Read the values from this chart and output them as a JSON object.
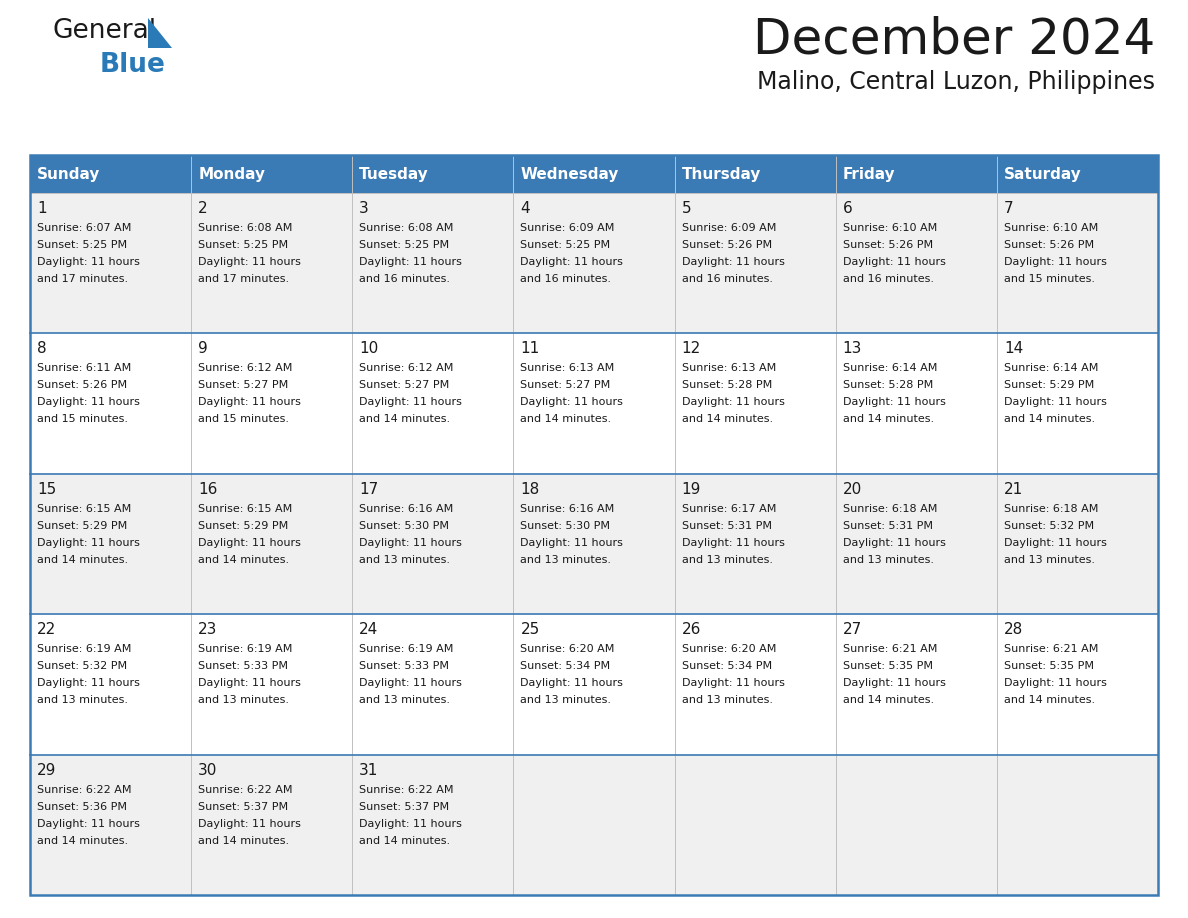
{
  "title": "December 2024",
  "subtitle": "Malino, Central Luzon, Philippines",
  "header_color": "#3a7ab5",
  "header_text_color": "#ffffff",
  "row_bg_odd": "#f0f0f0",
  "row_bg_even": "#ffffff",
  "border_color": "#3a7ab5",
  "sep_color": "#3a7ab5",
  "day_headers": [
    "Sunday",
    "Monday",
    "Tuesday",
    "Wednesday",
    "Thursday",
    "Friday",
    "Saturday"
  ],
  "weeks": [
    [
      {
        "day": 1,
        "sunrise": "6:07 AM",
        "sunset": "5:25 PM",
        "daylight": "11 hours and 17 minutes."
      },
      {
        "day": 2,
        "sunrise": "6:08 AM",
        "sunset": "5:25 PM",
        "daylight": "11 hours and 17 minutes."
      },
      {
        "day": 3,
        "sunrise": "6:08 AM",
        "sunset": "5:25 PM",
        "daylight": "11 hours and 16 minutes."
      },
      {
        "day": 4,
        "sunrise": "6:09 AM",
        "sunset": "5:25 PM",
        "daylight": "11 hours and 16 minutes."
      },
      {
        "day": 5,
        "sunrise": "6:09 AM",
        "sunset": "5:26 PM",
        "daylight": "11 hours and 16 minutes."
      },
      {
        "day": 6,
        "sunrise": "6:10 AM",
        "sunset": "5:26 PM",
        "daylight": "11 hours and 16 minutes."
      },
      {
        "day": 7,
        "sunrise": "6:10 AM",
        "sunset": "5:26 PM",
        "daylight": "11 hours and 15 minutes."
      }
    ],
    [
      {
        "day": 8,
        "sunrise": "6:11 AM",
        "sunset": "5:26 PM",
        "daylight": "11 hours and 15 minutes."
      },
      {
        "day": 9,
        "sunrise": "6:12 AM",
        "sunset": "5:27 PM",
        "daylight": "11 hours and 15 minutes."
      },
      {
        "day": 10,
        "sunrise": "6:12 AM",
        "sunset": "5:27 PM",
        "daylight": "11 hours and 14 minutes."
      },
      {
        "day": 11,
        "sunrise": "6:13 AM",
        "sunset": "5:27 PM",
        "daylight": "11 hours and 14 minutes."
      },
      {
        "day": 12,
        "sunrise": "6:13 AM",
        "sunset": "5:28 PM",
        "daylight": "11 hours and 14 minutes."
      },
      {
        "day": 13,
        "sunrise": "6:14 AM",
        "sunset": "5:28 PM",
        "daylight": "11 hours and 14 minutes."
      },
      {
        "day": 14,
        "sunrise": "6:14 AM",
        "sunset": "5:29 PM",
        "daylight": "11 hours and 14 minutes."
      }
    ],
    [
      {
        "day": 15,
        "sunrise": "6:15 AM",
        "sunset": "5:29 PM",
        "daylight": "11 hours and 14 minutes."
      },
      {
        "day": 16,
        "sunrise": "6:15 AM",
        "sunset": "5:29 PM",
        "daylight": "11 hours and 14 minutes."
      },
      {
        "day": 17,
        "sunrise": "6:16 AM",
        "sunset": "5:30 PM",
        "daylight": "11 hours and 13 minutes."
      },
      {
        "day": 18,
        "sunrise": "6:16 AM",
        "sunset": "5:30 PM",
        "daylight": "11 hours and 13 minutes."
      },
      {
        "day": 19,
        "sunrise": "6:17 AM",
        "sunset": "5:31 PM",
        "daylight": "11 hours and 13 minutes."
      },
      {
        "day": 20,
        "sunrise": "6:18 AM",
        "sunset": "5:31 PM",
        "daylight": "11 hours and 13 minutes."
      },
      {
        "day": 21,
        "sunrise": "6:18 AM",
        "sunset": "5:32 PM",
        "daylight": "11 hours and 13 minutes."
      }
    ],
    [
      {
        "day": 22,
        "sunrise": "6:19 AM",
        "sunset": "5:32 PM",
        "daylight": "11 hours and 13 minutes."
      },
      {
        "day": 23,
        "sunrise": "6:19 AM",
        "sunset": "5:33 PM",
        "daylight": "11 hours and 13 minutes."
      },
      {
        "day": 24,
        "sunrise": "6:19 AM",
        "sunset": "5:33 PM",
        "daylight": "11 hours and 13 minutes."
      },
      {
        "day": 25,
        "sunrise": "6:20 AM",
        "sunset": "5:34 PM",
        "daylight": "11 hours and 13 minutes."
      },
      {
        "day": 26,
        "sunrise": "6:20 AM",
        "sunset": "5:34 PM",
        "daylight": "11 hours and 13 minutes."
      },
      {
        "day": 27,
        "sunrise": "6:21 AM",
        "sunset": "5:35 PM",
        "daylight": "11 hours and 14 minutes."
      },
      {
        "day": 28,
        "sunrise": "6:21 AM",
        "sunset": "5:35 PM",
        "daylight": "11 hours and 14 minutes."
      }
    ],
    [
      {
        "day": 29,
        "sunrise": "6:22 AM",
        "sunset": "5:36 PM",
        "daylight": "11 hours and 14 minutes."
      },
      {
        "day": 30,
        "sunrise": "6:22 AM",
        "sunset": "5:37 PM",
        "daylight": "11 hours and 14 minutes."
      },
      {
        "day": 31,
        "sunrise": "6:22 AM",
        "sunset": "5:37 PM",
        "daylight": "11 hours and 14 minutes."
      },
      null,
      null,
      null,
      null
    ]
  ],
  "logo_text1": "General",
  "logo_text2": "Blue",
  "logo_color1": "#1a1a1a",
  "logo_color2": "#2a7ab8",
  "title_fontsize": 36,
  "subtitle_fontsize": 17,
  "day_num_fontsize": 11,
  "cell_text_fontsize": 8.0,
  "header_fontsize": 11
}
